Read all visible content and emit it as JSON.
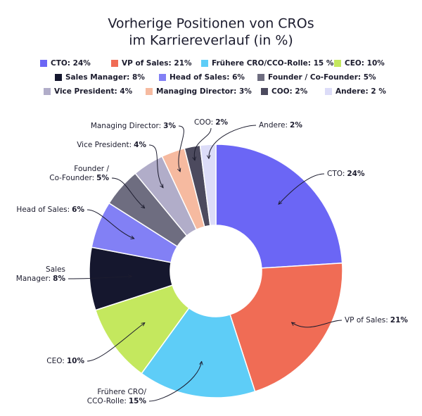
{
  "chart_data": {
    "type": "donut",
    "title": [
      "Vorherige Positionen von CROs",
      "im Karriereverlauf (in %)"
    ],
    "categories": [
      "CTO: 24%",
      "VP of Sales: 21%",
      "Frühere CRO/CCO-Rolle: 15 %",
      "CEO: 10%",
      "Sales Manager: 8%",
      "Head of Sales: 6%",
      "Founder / Co-Founder: 5%",
      "Vice President: 4%",
      "Managing Director: 3%",
      "COO: 2%",
      "Andere: 2 %"
    ],
    "values": [
      24,
      21,
      15,
      10,
      8,
      6,
      5,
      4,
      3,
      2,
      2
    ],
    "colors": [
      "#6b66f5",
      "#f06c55",
      "#5ecdf7",
      "#c4e85e",
      "#15172e",
      "#8280f5",
      "#6e6d80",
      "#b1adc9",
      "#f6baa0",
      "#4c4a5e",
      "#dcdcf8"
    ],
    "slice_labels": [
      {
        "text": [
          "CTO:"
        ],
        "value": "24%"
      },
      {
        "text": [
          "VP of Sales:"
        ],
        "value": "21%"
      },
      {
        "text": [
          "Frühere CRO/",
          "CCO-Rolle:"
        ],
        "value": "15%"
      },
      {
        "text": [
          "CEO:"
        ],
        "value": "10%"
      },
      {
        "text": [
          "Sales",
          "Manager:"
        ],
        "value": "8%"
      },
      {
        "text": [
          "Head of Sales:"
        ],
        "value": "6%"
      },
      {
        "text": [
          "Founder /",
          "Co-Founder:"
        ],
        "value": "5%"
      },
      {
        "text": [
          "Vice President:"
        ],
        "value": "4%"
      },
      {
        "text": [
          "Managing Director:"
        ],
        "value": "3%"
      },
      {
        "text": [
          "COO:"
        ],
        "value": "2%"
      },
      {
        "text": [
          "Andere:"
        ],
        "value": "2%"
      }
    ]
  }
}
